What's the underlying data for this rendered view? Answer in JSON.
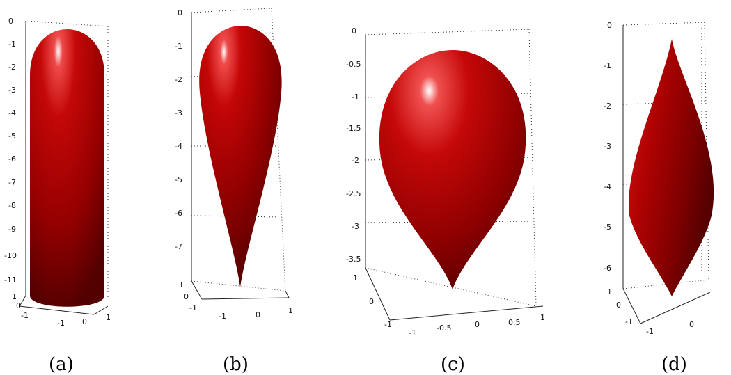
{
  "panels": [
    {
      "caption": "(a)",
      "z_ticks": [
        "0",
        "-1",
        "-2",
        "-3",
        "-4",
        "-5",
        "-6",
        "-7",
        "-8",
        "-9",
        "-10",
        "-11"
      ],
      "y_ticks": [
        "1",
        "0",
        "-1"
      ],
      "x_ticks": [
        "-1",
        "0",
        "1"
      ]
    },
    {
      "caption": "(b)",
      "z_ticks": [
        "0",
        "-1",
        "-2",
        "-3",
        "-4",
        "-5",
        "-6",
        "-7"
      ],
      "y_ticks": [
        "1",
        "0",
        "-1"
      ],
      "x_ticks": [
        "-1",
        "0",
        "1"
      ]
    },
    {
      "caption": "(c)",
      "z_ticks": [
        "0",
        "-0.5",
        "-1",
        "-1.5",
        "-2",
        "-2.5",
        "-3",
        "-3.5"
      ],
      "y_ticks": [
        "1",
        "0",
        "-1"
      ],
      "x_ticks": [
        "-1",
        "-0.5",
        "0",
        "0.5",
        "1"
      ]
    },
    {
      "caption": "(d)",
      "z_ticks": [
        "0",
        "-1",
        "-2",
        "-3",
        "-4",
        "-5",
        "-6"
      ],
      "y_ticks": [
        "1",
        "0",
        "-1"
      ],
      "x_ticks": [
        "-1",
        "0"
      ]
    }
  ],
  "colors": {
    "surface": "#b40000",
    "highlight": "#ffffff",
    "shadow": "#4a0000"
  }
}
